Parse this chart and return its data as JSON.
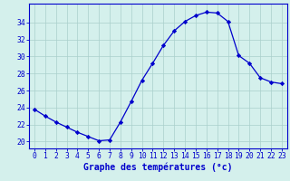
{
  "hours": [
    0,
    1,
    2,
    3,
    4,
    5,
    6,
    7,
    8,
    9,
    10,
    11,
    12,
    13,
    14,
    15,
    16,
    17,
    18,
    19,
    20,
    21,
    22,
    23
  ],
  "temps": [
    23.8,
    23.0,
    22.3,
    21.7,
    21.1,
    20.6,
    20.1,
    20.2,
    22.3,
    24.7,
    27.2,
    29.2,
    31.3,
    33.0,
    34.1,
    34.8,
    35.2,
    35.1,
    34.1,
    30.1,
    29.2,
    27.5,
    27.0,
    26.8
  ],
  "line_color": "#0000cc",
  "marker": "D",
  "marker_size": 2.2,
  "bg_color": "#d4f0ec",
  "grid_color": "#aacfcc",
  "axis_color": "#0000cc",
  "tick_color": "#0000cc",
  "xlabel": "Graphe des températures (°c)",
  "xlabel_fontsize": 7,
  "tick_fontsize": 5.8,
  "ytick_labels": [
    20,
    22,
    24,
    26,
    28,
    30,
    32,
    34
  ],
  "ylim": [
    19.2,
    36.2
  ],
  "xlim": [
    -0.5,
    23.5
  ]
}
